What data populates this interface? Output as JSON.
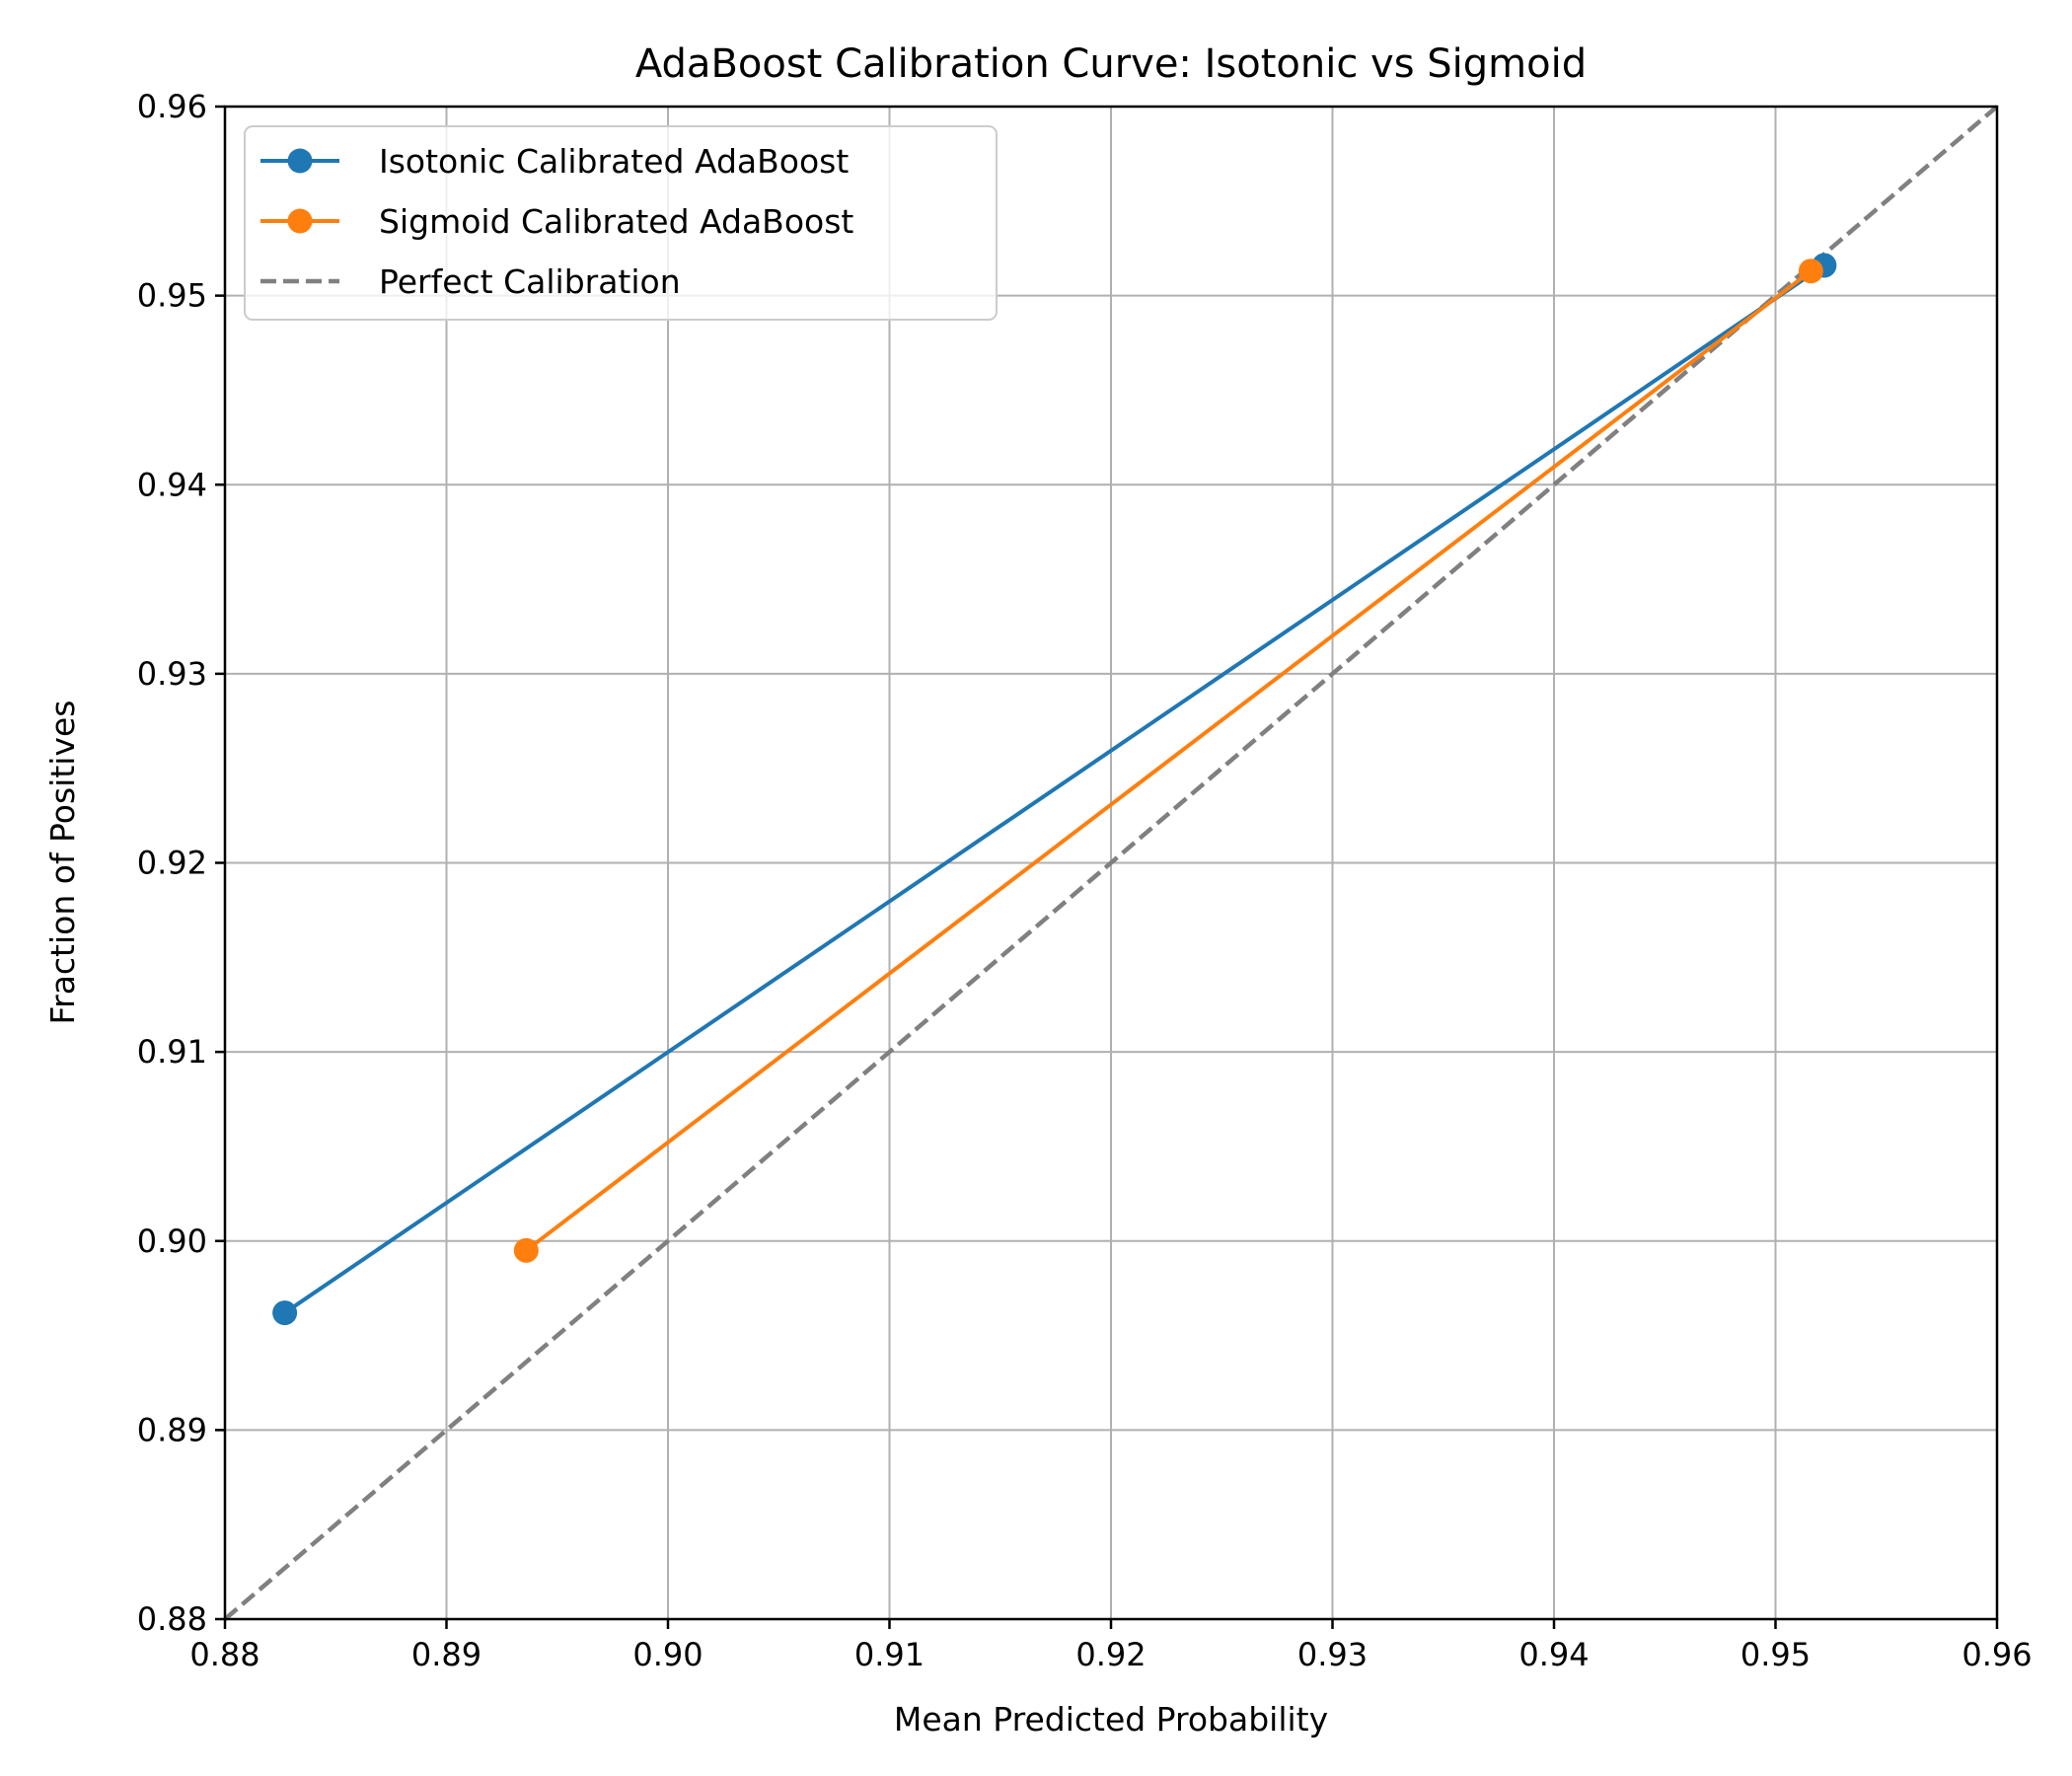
{
  "chart_data": {
    "type": "line",
    "title": "AdaBoost Calibration Curve: Isotonic vs Sigmoid",
    "xlabel": "Mean Predicted Probability",
    "ylabel": "Fraction of Positives",
    "xlim": [
      0.88,
      0.96
    ],
    "ylim": [
      0.88,
      0.96
    ],
    "xticks": [
      "0.88",
      "0.89",
      "0.90",
      "0.91",
      "0.92",
      "0.93",
      "0.94",
      "0.95",
      "0.96"
    ],
    "yticks": [
      "0.88",
      "0.89",
      "0.90",
      "0.91",
      "0.92",
      "0.93",
      "0.94",
      "0.95",
      "0.96"
    ],
    "grid": true,
    "legend_position": "top-left",
    "series": [
      {
        "name": "Isotonic Calibrated AdaBoost",
        "color": "#1f77b4",
        "style": "solid",
        "marker": "circle",
        "x": [
          0.8827,
          0.9522
        ],
        "y": [
          0.8962,
          0.9516
        ]
      },
      {
        "name": "Sigmoid Calibrated AdaBoost",
        "color": "#ff7f0e",
        "style": "solid",
        "marker": "circle",
        "x": [
          0.8936,
          0.9516
        ],
        "y": [
          0.8995,
          0.9513
        ]
      },
      {
        "name": "Perfect Calibration",
        "color": "#808080",
        "style": "dashed",
        "marker": "none",
        "x": [
          0.88,
          0.96
        ],
        "y": [
          0.88,
          0.96
        ]
      }
    ]
  }
}
